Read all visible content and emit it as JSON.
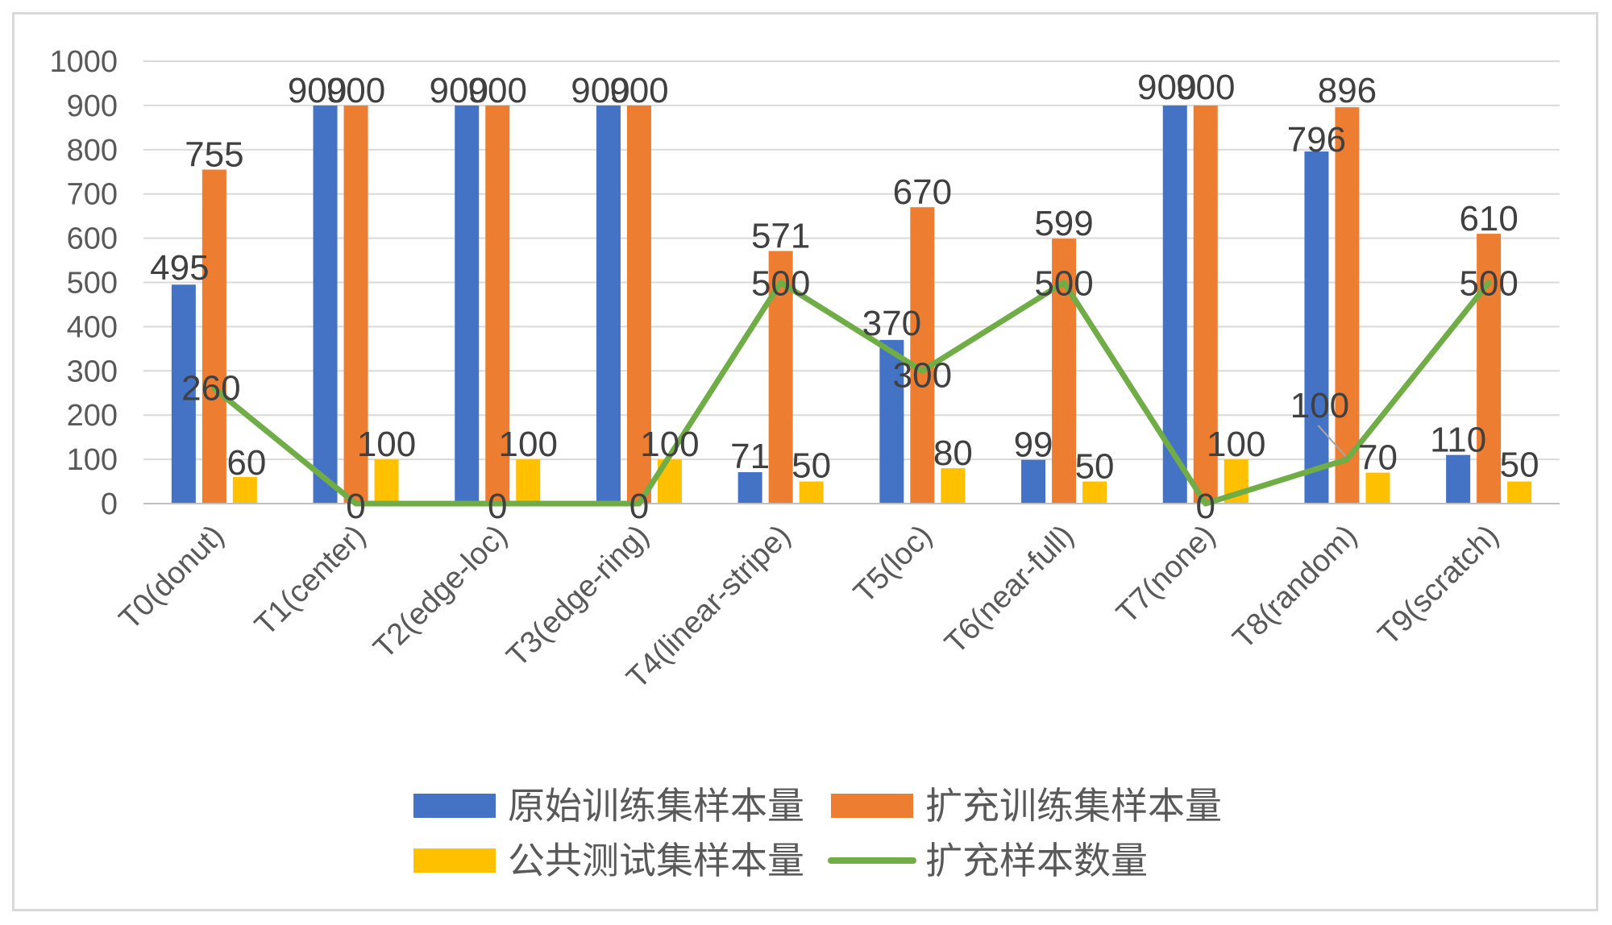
{
  "chart_data": {
    "type": "bar",
    "categories": [
      "T0(donut)",
      "T1(center)",
      "T2(edge-loc)",
      "T3(edge-ring)",
      "T4(linear-stripe)",
      "T5(loc)",
      "T6(near-full)",
      "T7(none)",
      "T8(random)",
      "T9(scratch)"
    ],
    "series": [
      {
        "name": "原始训练集样本量",
        "type": "bar",
        "color": "#4472C4",
        "values": [
          495,
          900,
          900,
          900,
          71,
          370,
          99,
          900,
          796,
          110
        ]
      },
      {
        "name": "扩充训练集样本量",
        "type": "bar",
        "color": "#ED7D31",
        "values": [
          755,
          900,
          900,
          900,
          571,
          670,
          599,
          900,
          896,
          610
        ]
      },
      {
        "name": "公共测试集样本量",
        "type": "bar",
        "color": "#FFC000",
        "values": [
          60,
          100,
          100,
          100,
          50,
          80,
          50,
          100,
          70,
          50
        ]
      },
      {
        "name": "扩充样本数量",
        "type": "line",
        "color": "#70AD47",
        "values": [
          260,
          0,
          0,
          0,
          500,
          300,
          500,
          0,
          100,
          500
        ]
      }
    ],
    "ylim": [
      0,
      1000
    ],
    "yticks": [
      0,
      100,
      200,
      300,
      400,
      500,
      600,
      700,
      800,
      900,
      1000
    ],
    "grid": true,
    "legend": "bottom",
    "data_labels": true,
    "x_tick_rotation": -45
  }
}
